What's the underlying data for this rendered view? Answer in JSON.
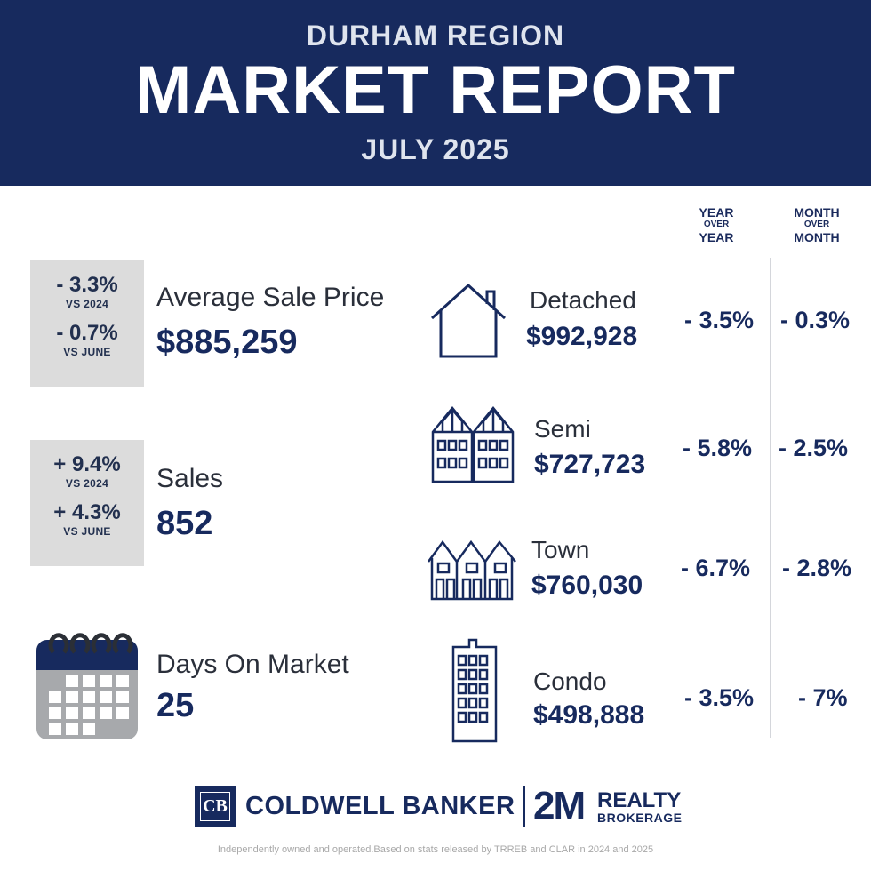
{
  "header": {
    "region": "DURHAM REGION",
    "title": "MARKET REPORT",
    "date": "JULY 2025"
  },
  "columns": {
    "yoy": {
      "top": "YEAR",
      "mid": "OVER",
      "bot": "YEAR"
    },
    "mom": {
      "top": "MONTH",
      "mid": "OVER",
      "bot": "MONTH"
    }
  },
  "avg_price": {
    "change_yoy": "- 3.3%",
    "change_yoy_label": "VS 2024",
    "change_mom": "- 0.7%",
    "change_mom_label": "VS JUNE",
    "label": "Average Sale Price",
    "value": "$885,259"
  },
  "sales": {
    "change_yoy": "+ 9.4%",
    "change_yoy_label": "VS 2024",
    "change_mom": "+ 4.3%",
    "change_mom_label": "VS JUNE",
    "label": "Sales",
    "value": "852"
  },
  "days_on_market": {
    "label": "Days On Market",
    "value": "25",
    "icon": "calendar-icon"
  },
  "property_types": [
    {
      "label": "Detached",
      "price": "$992,928",
      "yoy": "- 3.5%",
      "mom": "- 0.3%",
      "icon": "detached-house-icon"
    },
    {
      "label": "Semi",
      "price": "$727,723",
      "yoy": "- 5.8%",
      "mom": "- 2.5%",
      "icon": "semi-house-icon"
    },
    {
      "label": "Town",
      "price": "$760,030",
      "yoy": "- 6.7%",
      "mom": "- 2.8%",
      "icon": "townhouse-icon"
    },
    {
      "label": "Condo",
      "price": "$498,888",
      "yoy": "- 3.5%",
      "mom": "- 7%",
      "icon": "condo-building-icon"
    }
  ],
  "logos": {
    "cb_monogram": "CB",
    "cb_name": "COLDWELL BANKER",
    "brand2_mark": "2M",
    "brand2_name": "REALTY",
    "brand2_sub": "BROKERAGE"
  },
  "footnote": "Independently owned and operated.Based on stats released by TRREB and CLAR  in 2024 and 2025",
  "colors": {
    "navy": "#172a5e",
    "gray_box": "#dcdcdc",
    "calendar_gray": "#a7a9ac"
  }
}
